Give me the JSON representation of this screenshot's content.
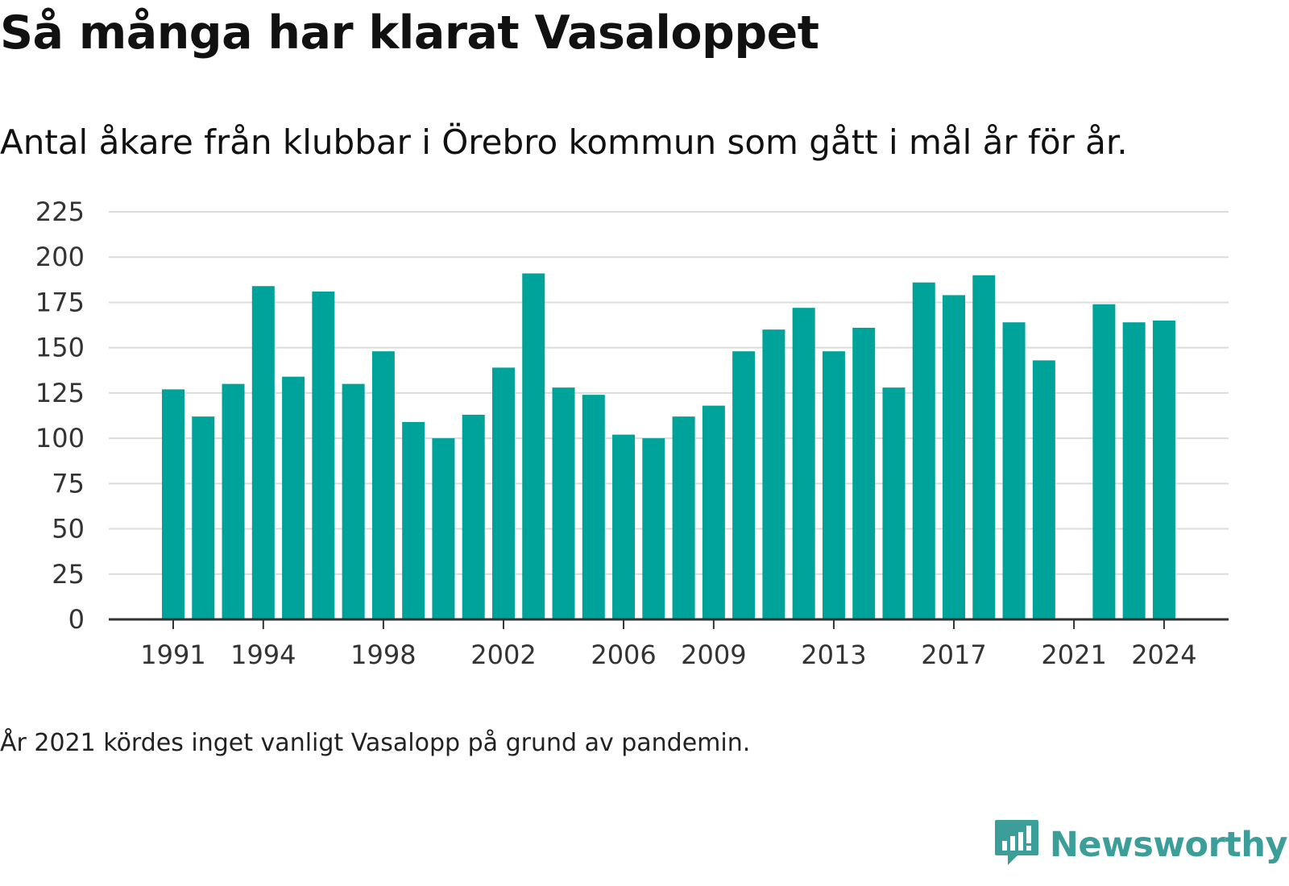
{
  "header": {
    "title": "Så många har klarat Vasaloppet",
    "subtitle": "Antal åkare från klubbar i Örebro kommun som gått i mål år för år."
  },
  "footer": {
    "note": "År 2021 kördes inget vanligt Vasalopp på grund av pandemin.",
    "brand": "Newsworthy"
  },
  "colors": {
    "bar": "#00a39a",
    "grid": "#dcdcdc",
    "axis": "#333333",
    "brand": "#3c9e98"
  },
  "chart_data": {
    "type": "bar",
    "categories": [
      "1991",
      "1992",
      "1993",
      "1994",
      "1995",
      "1996",
      "1997",
      "1998",
      "1999",
      "2000",
      "2001",
      "2002",
      "2003",
      "2004",
      "2005",
      "2006",
      "2007",
      "2008",
      "2009",
      "2010",
      "2011",
      "2012",
      "2013",
      "2014",
      "2015",
      "2016",
      "2017",
      "2018",
      "2019",
      "2020",
      "2021",
      "2022",
      "2023",
      "2024"
    ],
    "values": [
      127,
      112,
      130,
      184,
      134,
      181,
      130,
      148,
      109,
      100,
      113,
      139,
      191,
      128,
      124,
      102,
      100,
      112,
      118,
      148,
      160,
      172,
      148,
      161,
      128,
      186,
      179,
      190,
      164,
      143,
      null,
      174,
      164,
      165
    ],
    "x_tick_labels": [
      "1991",
      "1994",
      "1998",
      "2002",
      "2006",
      "2009",
      "2013",
      "2017",
      "2021",
      "2024"
    ],
    "y_ticks": [
      0,
      25,
      50,
      75,
      100,
      125,
      150,
      175,
      200,
      225
    ],
    "ylim": [
      0,
      225
    ],
    "grid": true,
    "legend": "none",
    "title": "Så många har klarat Vasaloppet",
    "subtitle": "Antal åkare från klubbar i Örebro kommun som gått i mål år för år.",
    "annotation": "År 2021 kördes inget vanligt Vasalopp på grund av pandemin."
  }
}
